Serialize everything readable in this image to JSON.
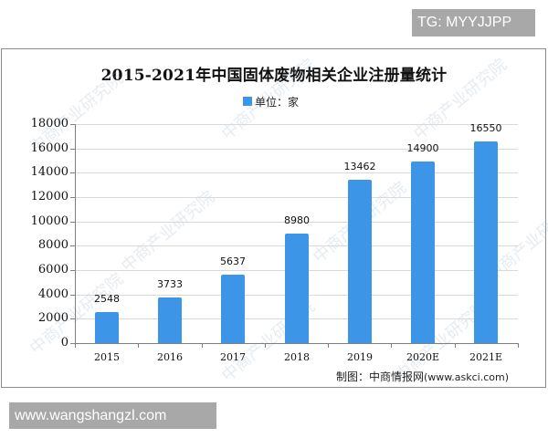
{
  "overlay": {
    "tg_badge": "TG: MYYJJPP",
    "site_badge": "www.wangshangzl.com"
  },
  "chart": {
    "title": "2015-2021年中国固体废物相关企业注册量统计",
    "legend_label": "单位：家",
    "source_label": "制图：中商情报网",
    "source_url": "(www.askci.com)",
    "watermark_text": "中商产业研究院",
    "bar_color": "#3c95e6"
  },
  "chart_data": {
    "type": "bar",
    "title": "2015-2021年中国固体废物相关企业注册量统计",
    "xlabel": "",
    "ylabel": "",
    "legend": [
      "单位：家"
    ],
    "legend_position": "top",
    "grid": true,
    "ylim": [
      0,
      18000
    ],
    "yticks": [
      0,
      2000,
      4000,
      6000,
      8000,
      10000,
      12000,
      14000,
      16000,
      18000
    ],
    "categories": [
      "2015",
      "2016",
      "2017",
      "2018",
      "2019",
      "2020E",
      "2021E"
    ],
    "values": [
      2548,
      3733,
      5637,
      8980,
      13462,
      14900,
      16550
    ],
    "data_labels": [
      "2548",
      "3733",
      "5637",
      "8980",
      "13462",
      "14900",
      "16550"
    ],
    "annotations": [
      "制图：中商情报网(www.askci.com)"
    ]
  }
}
